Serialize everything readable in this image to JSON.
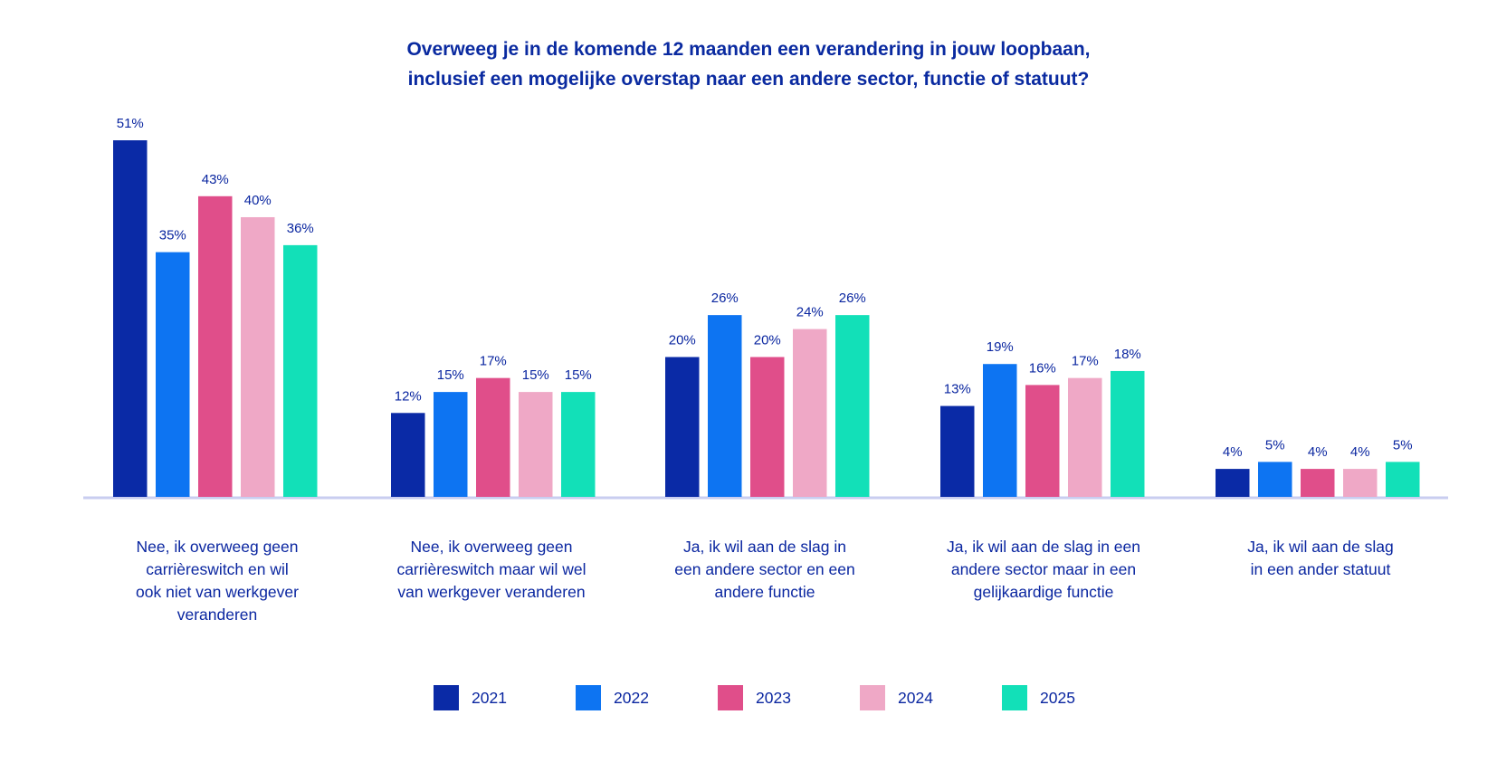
{
  "chart_data": {
    "type": "bar",
    "title_lines": [
      "Overweeg je in de komende 12 maanden een verandering in jouw loopbaan,",
      "inclusief een mogelijke overstap naar een andere sector, functie of statuut?"
    ],
    "categories": [
      [
        "Nee, ik overweeg geen",
        "carrièreswitch en wil",
        "ook niet van werkgever",
        "veranderen"
      ],
      [
        "Nee, ik overweeg geen",
        "carrièreswitch maar wil wel",
        "van werkgever veranderen"
      ],
      [
        "Ja, ik wil aan de slag in",
        "een andere sector en een",
        "andere functie"
      ],
      [
        "Ja, ik wil aan de slag in een",
        "andere sector maar in een",
        "gelijkaardige functie"
      ],
      [
        "Ja, ik wil aan de slag",
        "in een ander statuut"
      ]
    ],
    "series": [
      {
        "name": "2021",
        "color": "#0a2aa6",
        "values": [
          51,
          12,
          20,
          13,
          4
        ]
      },
      {
        "name": "2022",
        "color": "#0d74f2",
        "values": [
          35,
          15,
          26,
          19,
          5
        ]
      },
      {
        "name": "2023",
        "color": "#e04e8a",
        "values": [
          43,
          17,
          20,
          16,
          4
        ]
      },
      {
        "name": "2024",
        "color": "#efa8c6",
        "values": [
          40,
          15,
          24,
          17,
          4
        ]
      },
      {
        "name": "2025",
        "color": "#12e0b8",
        "values": [
          36,
          15,
          26,
          18,
          5
        ]
      }
    ],
    "value_suffix": "%",
    "ylim": [
      0,
      51
    ],
    "grid": false,
    "legend_position": "bottom",
    "axis_color": "#c9cdf0"
  }
}
